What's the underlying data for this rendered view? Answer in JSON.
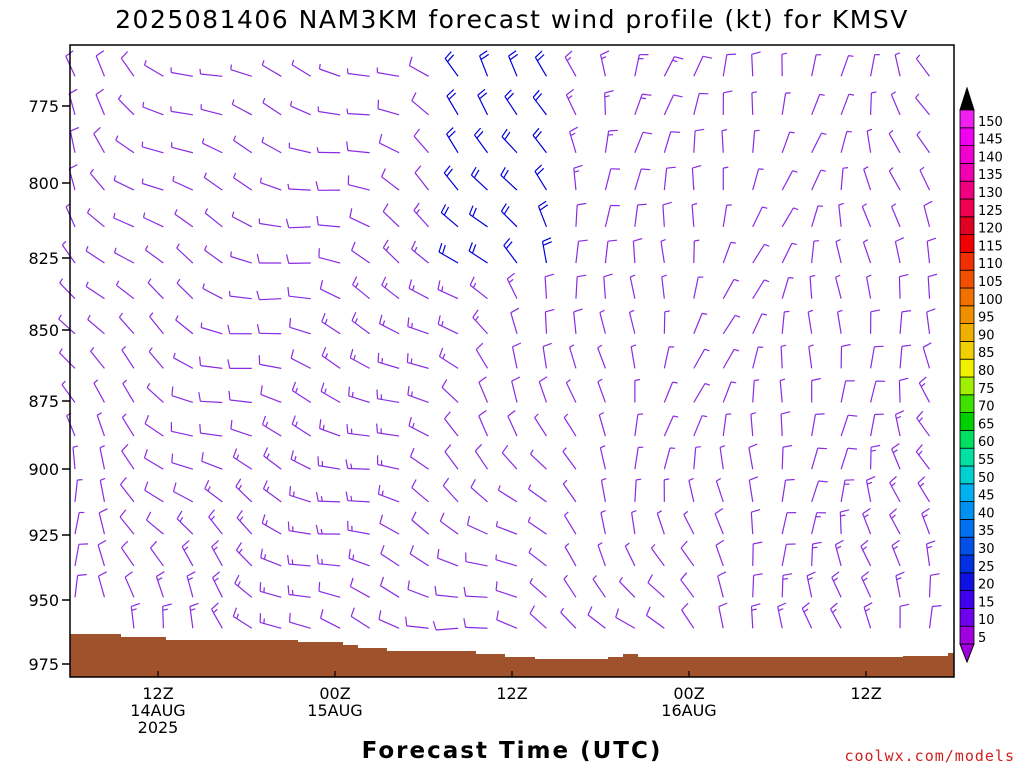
{
  "chart_data": {
    "type": "wind-barb-time-height",
    "title": "2025081406 NAM3KM forecast wind profile (kt) for KMSV",
    "xlabel": "Forecast Time (UTC)",
    "ylabel": "",
    "y_scale": "pressure (inverted)",
    "ylim": [
      980,
      750
    ],
    "y_ticks": [
      "775",
      "800",
      "825",
      "850",
      "875",
      "900",
      "925",
      "950",
      "975"
    ],
    "x_ticks": [
      {
        "line1": "12Z",
        "line2": "14AUG",
        "line3": "2025"
      },
      {
        "line1": "00Z",
        "line2": "15AUG",
        "line3": ""
      },
      {
        "line1": "12Z",
        "line2": "",
        "line3": ""
      },
      {
        "line1": "00Z",
        "line2": "16AUG",
        "line3": ""
      },
      {
        "line1": "12Z",
        "line2": "",
        "line3": ""
      }
    ],
    "colorbar": {
      "ticks": [
        "5",
        "10",
        "15",
        "20",
        "25",
        "30",
        "35",
        "40",
        "45",
        "50",
        "55",
        "60",
        "65",
        "70",
        "75",
        "80",
        "85",
        "90",
        "95",
        "100",
        "105",
        "110",
        "115",
        "120",
        "125",
        "130",
        "135",
        "140",
        "145",
        "150"
      ],
      "colors": [
        "#a000e0",
        "#7000f0",
        "#4000f0",
        "#1010e0",
        "#0030e0",
        "#0050e8",
        "#0070f0",
        "#0090f0",
        "#00b0f0",
        "#00d0d0",
        "#00e0a0",
        "#00e060",
        "#00d000",
        "#40e000",
        "#a0f000",
        "#f0f000",
        "#f0d000",
        "#f0b000",
        "#f09000",
        "#f07000",
        "#f05000",
        "#f03000",
        "#f00000",
        "#e00020",
        "#f00050",
        "#f00080",
        "#f000b0",
        "#f000d0",
        "#f000f0",
        "#f020f0"
      ],
      "cap_color": "#000000",
      "bottom_color": "#a000e0"
    },
    "barb_color_light": "#8a2be2",
    "barb_color_strong": "#0000d8",
    "terrain_color": "#a0522d",
    "speed_range_kt": [
      5,
      25
    ]
  },
  "credit": "coolwx.com/models"
}
